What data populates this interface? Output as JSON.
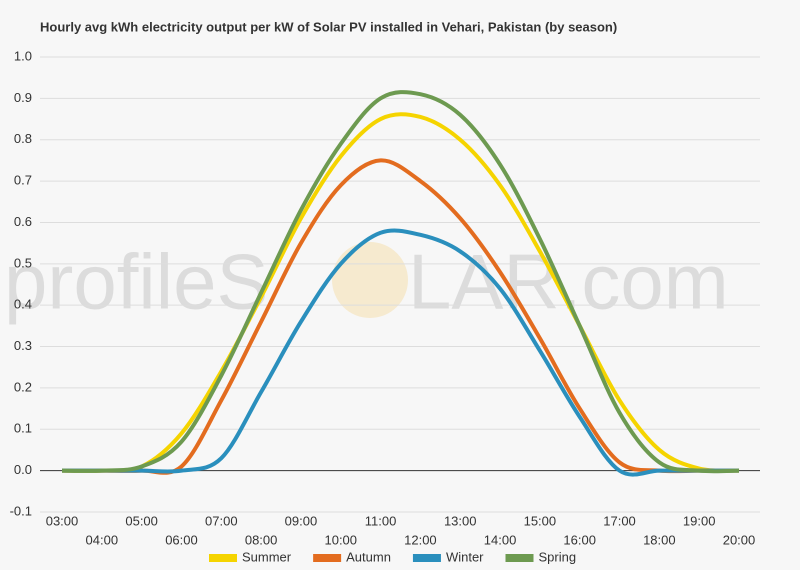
{
  "chart_data": {
    "type": "line",
    "title": "Hourly avg kWh electricity output per kW of Solar PV installed in Vehari, Pakistan (by season)",
    "watermark": [
      "profileS",
      "LAR.com"
    ],
    "categories": [
      "03:00",
      "04:00",
      "05:00",
      "06:00",
      "07:00",
      "08:00",
      "09:00",
      "10:00",
      "11:00",
      "12:00",
      "13:00",
      "14:00",
      "15:00",
      "16:00",
      "17:00",
      "18:00",
      "19:00",
      "20:00"
    ],
    "series": [
      {
        "name": "Summer",
        "color": "#f5d400",
        "values": [
          0,
          0,
          0.01,
          0.09,
          0.24,
          0.42,
          0.61,
          0.76,
          0.85,
          0.855,
          0.8,
          0.69,
          0.53,
          0.35,
          0.17,
          0.05,
          0.005,
          0
        ]
      },
      {
        "name": "Autumn",
        "color": "#e36c1f",
        "values": [
          0,
          0,
          0,
          0.01,
          0.17,
          0.36,
          0.55,
          0.69,
          0.75,
          0.7,
          0.61,
          0.48,
          0.32,
          0.15,
          0.02,
          0,
          0,
          0
        ]
      },
      {
        "name": "Winter",
        "color": "#2a8fbd",
        "values": [
          0,
          0,
          0,
          0,
          0.03,
          0.19,
          0.36,
          0.5,
          0.575,
          0.57,
          0.53,
          0.44,
          0.29,
          0.13,
          0,
          0,
          0,
          0
        ]
      },
      {
        "name": "Spring",
        "color": "#6d9a50",
        "values": [
          0,
          0,
          0.01,
          0.07,
          0.23,
          0.43,
          0.63,
          0.79,
          0.9,
          0.91,
          0.86,
          0.74,
          0.56,
          0.35,
          0.14,
          0.02,
          0,
          0
        ]
      }
    ],
    "ylim": [
      -0.1,
      1.0
    ],
    "yticks": [
      -0.1,
      {
        "value": 0,
        "label": "0.0"
      },
      0.1,
      0.2,
      0.3,
      0.4,
      0.5,
      0.6,
      0.7,
      0.8,
      0.9,
      {
        "value": 1,
        "label": "1.0"
      }
    ],
    "grid": true,
    "legend": "bottom"
  }
}
